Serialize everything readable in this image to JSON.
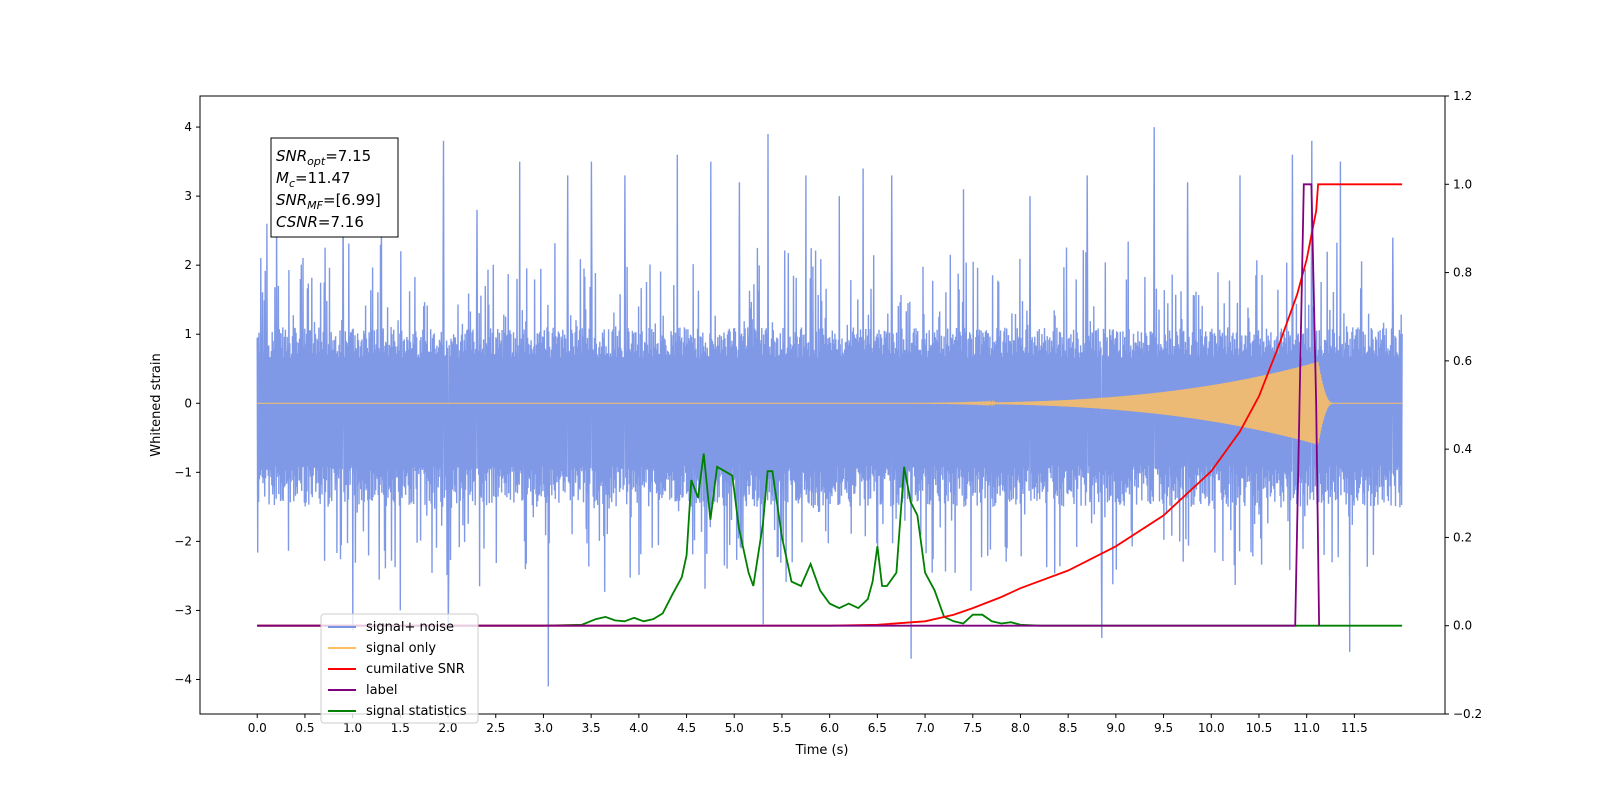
{
  "chart_data": {
    "type": "line",
    "xlabel": "Time (s)",
    "ylabel": "Whitened strain",
    "xlim": [
      -0.6,
      12.45
    ],
    "ylim": [
      -4.5,
      4.45
    ],
    "y2lim": [
      -0.2,
      1.2
    ],
    "x_ticks": [
      0.0,
      0.5,
      1.0,
      1.5,
      2.0,
      2.5,
      3.0,
      3.5,
      4.0,
      4.5,
      5.0,
      5.5,
      6.0,
      6.5,
      7.0,
      7.5,
      8.0,
      8.5,
      9.0,
      9.5,
      10.0,
      10.5,
      11.0,
      11.5
    ],
    "x_tick_labels": [
      "0.0",
      "0.5",
      "1.0",
      "1.5",
      "2.0",
      "2.5",
      "3.0",
      "3.5",
      "4.0",
      "4.5",
      "5.0",
      "5.5",
      "6.0",
      "6.5",
      "7.0",
      "7.5",
      "8.0",
      "8.5",
      "9.0",
      "9.5",
      "10.0",
      "10.5",
      "11.0",
      "11.5"
    ],
    "y_ticks": [
      -4,
      -3,
      -2,
      -1,
      0,
      1,
      2,
      3,
      4
    ],
    "y_tick_labels": [
      "−4",
      "−3",
      "−2",
      "−1",
      "0",
      "1",
      "2",
      "3",
      "4"
    ],
    "y2_ticks": [
      -0.2,
      0.0,
      0.2,
      0.4,
      0.6,
      0.8,
      1.0,
      1.2
    ],
    "y2_tick_labels": [
      "−0.2",
      "0.0",
      "0.2",
      "0.4",
      "0.6",
      "0.8",
      "1.0",
      "1.2"
    ],
    "grid": false,
    "legend_position": "bottom-left",
    "annotation": {
      "lines": [
        {
          "base": "SNR",
          "sub": "opt",
          "rest": "=7.15"
        },
        {
          "base": "M",
          "sub": "c",
          "rest": "=11.47"
        },
        {
          "base": "SNR",
          "sub": "MF",
          "rest": "=[6.99]"
        },
        {
          "base": "CSNR",
          "sub": "",
          "rest": "=7.16"
        }
      ]
    },
    "series": [
      {
        "name": "signal+ noise",
        "axis": "left",
        "color": "#7894e6",
        "x_start": 0.0,
        "x_end": 12.0,
        "envelope_lower": -1.5,
        "envelope_upper": 1.1,
        "peak_points": [
          [
            0.1,
            2.6
          ],
          [
            0.2,
            2.9
          ],
          [
            0.45,
            1.8
          ],
          [
            0.9,
            3.0
          ],
          [
            1.0,
            -3.3
          ],
          [
            1.3,
            3.0
          ],
          [
            1.5,
            -3.0
          ],
          [
            1.95,
            3.8
          ],
          [
            2.0,
            -3.2
          ],
          [
            2.3,
            2.8
          ],
          [
            2.75,
            3.5
          ],
          [
            3.05,
            -4.1
          ],
          [
            3.25,
            3.3
          ],
          [
            3.5,
            3.5
          ],
          [
            3.85,
            3.3
          ],
          [
            4.4,
            3.6
          ],
          [
            4.75,
            3.5
          ],
          [
            5.05,
            3.2
          ],
          [
            5.3,
            -3.2
          ],
          [
            5.35,
            3.9
          ],
          [
            5.75,
            3.3
          ],
          [
            6.1,
            3.0
          ],
          [
            6.35,
            3.4
          ],
          [
            6.65,
            3.3
          ],
          [
            6.85,
            -3.7
          ],
          [
            7.4,
            3.1
          ],
          [
            8.1,
            3.0
          ],
          [
            8.7,
            3.3
          ],
          [
            8.85,
            -3.4
          ],
          [
            9.4,
            4.0
          ],
          [
            9.75,
            3.2
          ],
          [
            10.3,
            3.3
          ],
          [
            10.85,
            3.6
          ],
          [
            11.05,
            3.8
          ],
          [
            11.35,
            3.5
          ],
          [
            11.45,
            -3.6
          ],
          [
            11.9,
            2.4
          ]
        ]
      },
      {
        "name": "signal only",
        "axis": "left",
        "color": "#ffbf5f",
        "chirp_start": 6.5,
        "merger_time": 11.12,
        "peak_amplitude": 0.6
      },
      {
        "name": "cumilative SNR",
        "axis": "right",
        "color": "#ff0000",
        "points": [
          [
            0.0,
            0.0
          ],
          [
            6.0,
            0.0
          ],
          [
            6.5,
            0.002
          ],
          [
            7.0,
            0.01
          ],
          [
            7.3,
            0.025
          ],
          [
            7.5,
            0.04
          ],
          [
            7.8,
            0.065
          ],
          [
            8.0,
            0.085
          ],
          [
            8.5,
            0.125
          ],
          [
            9.0,
            0.18
          ],
          [
            9.5,
            0.25
          ],
          [
            10.0,
            0.35
          ],
          [
            10.3,
            0.44
          ],
          [
            10.5,
            0.52
          ],
          [
            10.7,
            0.63
          ],
          [
            10.9,
            0.75
          ],
          [
            11.0,
            0.83
          ],
          [
            11.1,
            0.94
          ],
          [
            11.12,
            1.0
          ],
          [
            12.0,
            1.0
          ]
        ]
      },
      {
        "name": "label",
        "axis": "right",
        "color": "#800080",
        "points": [
          [
            0.0,
            0.0
          ],
          [
            10.88,
            0.0
          ],
          [
            10.97,
            1.0
          ],
          [
            11.05,
            1.0
          ],
          [
            11.1,
            0.5
          ],
          [
            11.13,
            0.0
          ]
        ]
      },
      {
        "name": "signal statistics",
        "axis": "right",
        "color": "#008000",
        "points": [
          [
            0.0,
            0.0
          ],
          [
            3.0,
            0.0
          ],
          [
            3.4,
            0.002
          ],
          [
            3.55,
            0.015
          ],
          [
            3.65,
            0.02
          ],
          [
            3.75,
            0.012
          ],
          [
            3.85,
            0.01
          ],
          [
            3.95,
            0.018
          ],
          [
            4.05,
            0.01
          ],
          [
            4.15,
            0.015
          ],
          [
            4.25,
            0.028
          ],
          [
            4.35,
            0.07
          ],
          [
            4.45,
            0.11
          ],
          [
            4.5,
            0.16
          ],
          [
            4.55,
            0.33
          ],
          [
            4.62,
            0.29
          ],
          [
            4.68,
            0.39
          ],
          [
            4.75,
            0.24
          ],
          [
            4.82,
            0.36
          ],
          [
            4.9,
            0.35
          ],
          [
            4.98,
            0.34
          ],
          [
            5.05,
            0.22
          ],
          [
            5.15,
            0.12
          ],
          [
            5.2,
            0.09
          ],
          [
            5.3,
            0.23
          ],
          [
            5.35,
            0.35
          ],
          [
            5.4,
            0.35
          ],
          [
            5.5,
            0.2
          ],
          [
            5.6,
            0.1
          ],
          [
            5.7,
            0.09
          ],
          [
            5.8,
            0.14
          ],
          [
            5.9,
            0.08
          ],
          [
            6.0,
            0.05
          ],
          [
            6.1,
            0.04
          ],
          [
            6.2,
            0.05
          ],
          [
            6.3,
            0.04
          ],
          [
            6.4,
            0.06
          ],
          [
            6.45,
            0.1
          ],
          [
            6.5,
            0.18
          ],
          [
            6.55,
            0.09
          ],
          [
            6.6,
            0.09
          ],
          [
            6.7,
            0.12
          ],
          [
            6.78,
            0.36
          ],
          [
            6.85,
            0.28
          ],
          [
            6.92,
            0.25
          ],
          [
            7.0,
            0.12
          ],
          [
            7.1,
            0.08
          ],
          [
            7.2,
            0.02
          ],
          [
            7.3,
            0.01
          ],
          [
            7.4,
            0.005
          ],
          [
            7.5,
            0.025
          ],
          [
            7.6,
            0.025
          ],
          [
            7.7,
            0.01
          ],
          [
            7.8,
            0.005
          ],
          [
            7.9,
            0.008
          ],
          [
            8.0,
            0.002
          ],
          [
            8.2,
            0.0
          ],
          [
            12.0,
            0.0
          ]
        ]
      }
    ]
  }
}
